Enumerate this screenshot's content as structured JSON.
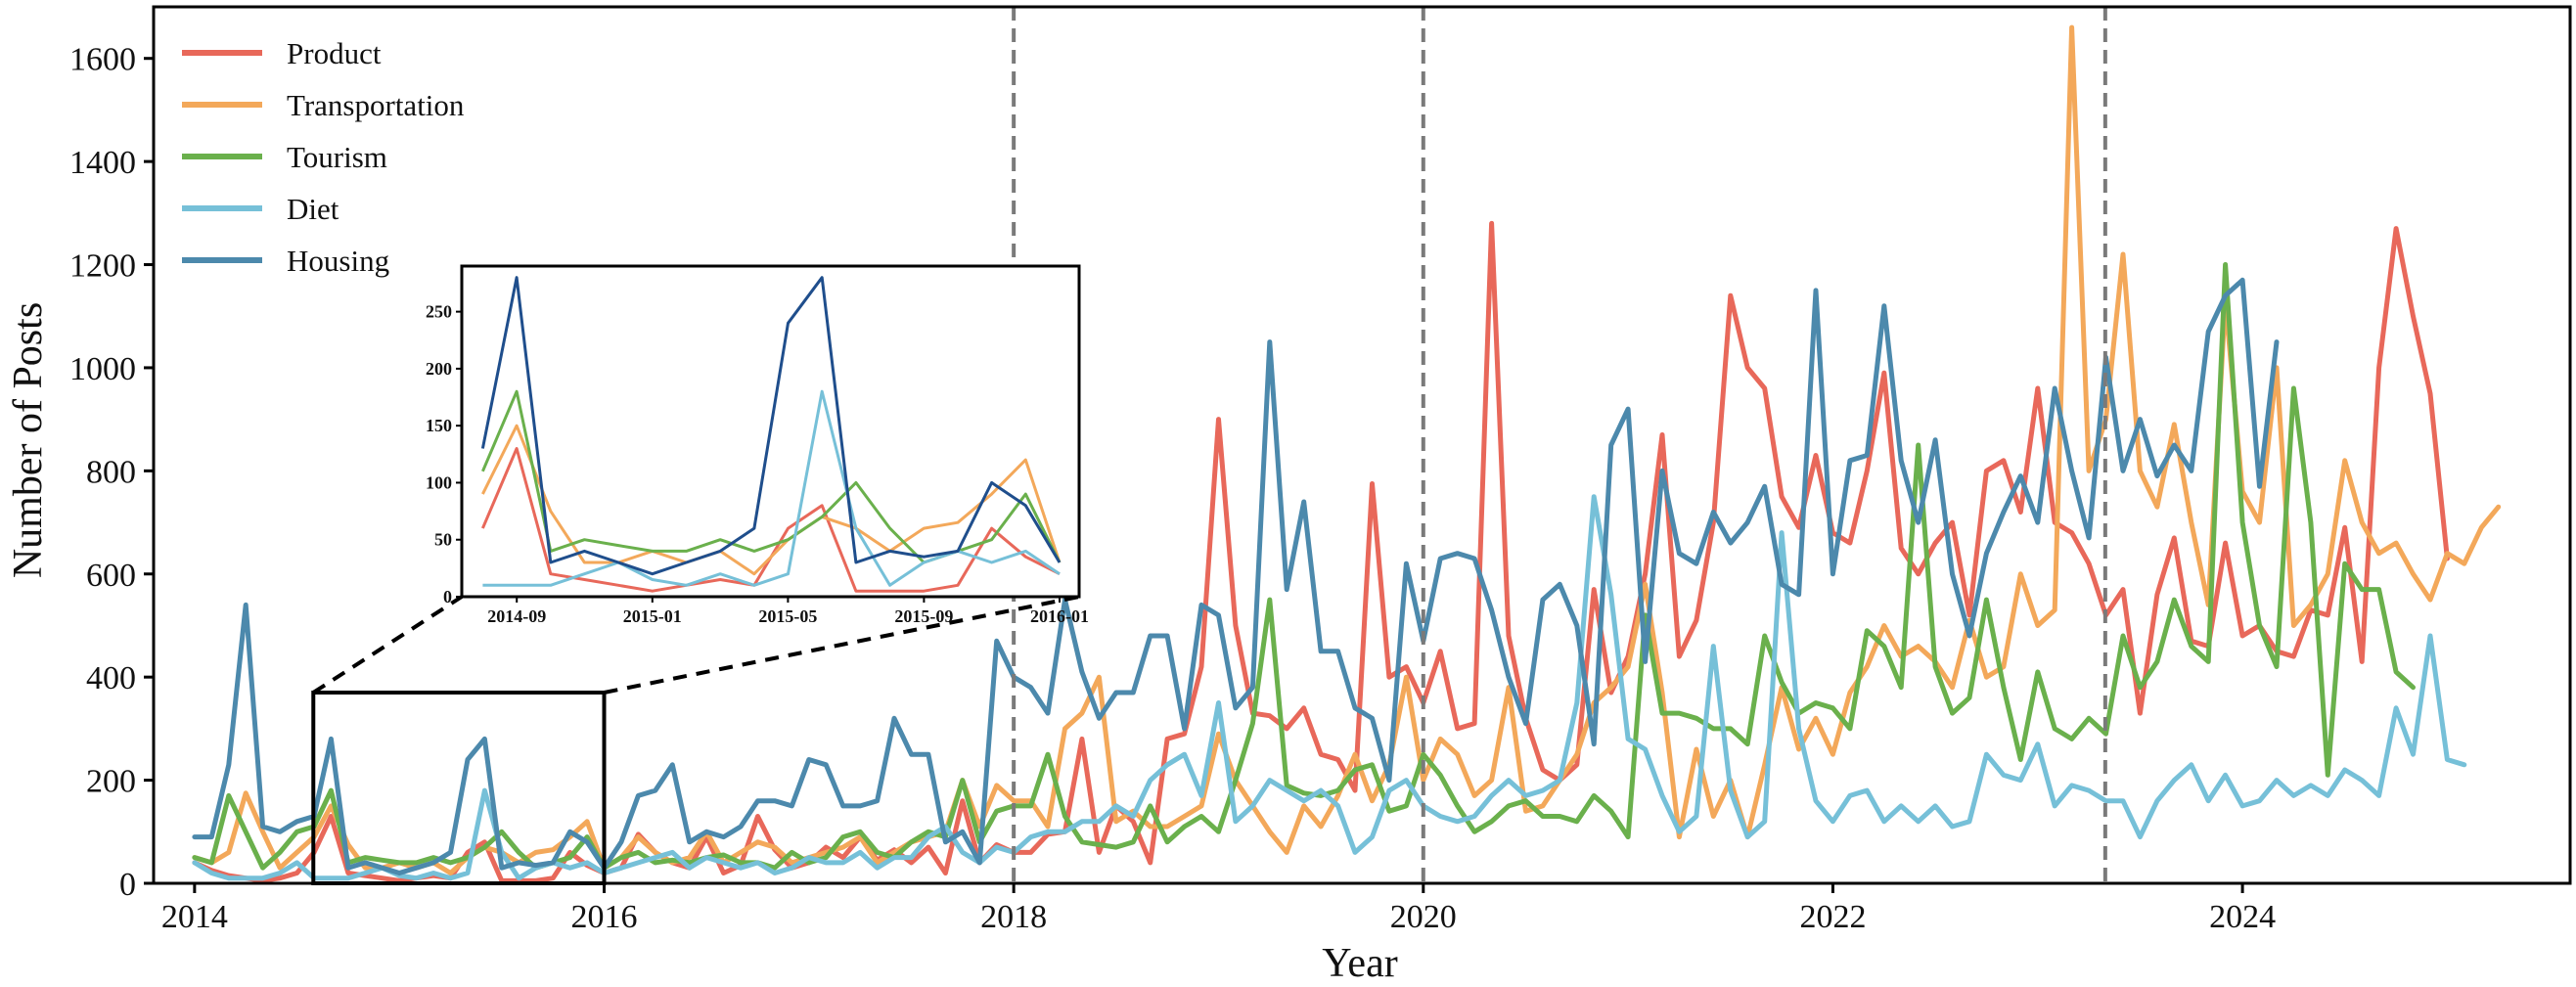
{
  "chart_data": {
    "type": "line",
    "title": "",
    "xlabel": "Year",
    "ylabel": "Number of Posts",
    "xlim": [
      2013.8,
      2025.6
    ],
    "ylim": [
      0,
      1700
    ],
    "xticks": [
      2014,
      2016,
      2018,
      2020,
      2022,
      2024
    ],
    "xtick_labels": [
      "2014",
      "2016",
      "2018",
      "2020",
      "2022",
      "2024"
    ],
    "yticks": [
      0,
      200,
      400,
      600,
      800,
      1000,
      1200,
      1400,
      1600
    ],
    "ytick_labels": [
      "0",
      "200",
      "400",
      "600",
      "800",
      "1000",
      "1200",
      "1400",
      "1600"
    ],
    "grid": false,
    "legend_position": "top-left",
    "vertical_dashed_lines": [
      2018.0,
      2020.0,
      2023.33
    ],
    "x_start": 2014.0,
    "x_step": 0.0833333,
    "series": [
      {
        "name": "Product",
        "color": "#e8685a",
        "values": [
          40,
          25,
          15,
          10,
          5,
          10,
          20,
          60,
          130,
          20,
          15,
          10,
          5,
          10,
          15,
          10,
          60,
          80,
          5,
          5,
          5,
          10,
          60,
          35,
          20,
          30,
          95,
          60,
          40,
          30,
          90,
          20,
          35,
          130,
          65,
          30,
          40,
          70,
          50,
          90,
          45,
          65,
          40,
          70,
          20,
          160,
          40,
          75,
          60,
          60,
          95,
          100,
          280,
          60,
          150,
          120,
          40,
          280,
          290,
          420,
          900,
          500,
          330,
          325,
          300,
          340,
          250,
          240,
          180,
          775,
          400,
          420,
          350,
          450,
          300,
          310,
          1280,
          480,
          320,
          220,
          200,
          230,
          570,
          370,
          440,
          600,
          870,
          440,
          510,
          700,
          1140,
          1000,
          960,
          750,
          690,
          830,
          680,
          660,
          800,
          990,
          650,
          600,
          660,
          700,
          520,
          800,
          820,
          720,
          960,
          700,
          680,
          620,
          520,
          570,
          330,
          560,
          670,
          470,
          460,
          660,
          480,
          500,
          450,
          440,
          530,
          520,
          690,
          430,
          1000,
          1270,
          1100,
          950,
          630
        ]
      },
      {
        "name": "Transportation",
        "color": "#f3a85a",
        "values": [
          50,
          40,
          60,
          175,
          100,
          30,
          60,
          90,
          150,
          75,
          30,
          30,
          40,
          30,
          40,
          20,
          50,
          70,
          60,
          40,
          60,
          65,
          90,
          120,
          30,
          50,
          90,
          60,
          40,
          50,
          100,
          40,
          60,
          80,
          70,
          40,
          50,
          60,
          70,
          90,
          40,
          60,
          80,
          90,
          100,
          200,
          110,
          190,
          160,
          160,
          110,
          300,
          330,
          400,
          120,
          140,
          110,
          110,
          130,
          150,
          290,
          200,
          150,
          100,
          60,
          150,
          110,
          170,
          250,
          160,
          230,
          400,
          200,
          280,
          250,
          170,
          200,
          380,
          140,
          150,
          200,
          250,
          350,
          380,
          420,
          580,
          370,
          90,
          260,
          130,
          200,
          90,
          230,
          380,
          260,
          320,
          250,
          370,
          420,
          500,
          440,
          460,
          430,
          380,
          510,
          400,
          420,
          600,
          500,
          530,
          1660,
          800,
          900,
          1220,
          800,
          730,
          890,
          700,
          540,
          1130,
          760,
          700,
          1000,
          500,
          540,
          600,
          820,
          700,
          640,
          660,
          600,
          550,
          640,
          620,
          690,
          730
        ]
      },
      {
        "name": "Tourism",
        "color": "#6ab04c",
        "values": [
          50,
          40,
          170,
          100,
          30,
          60,
          100,
          110,
          180,
          40,
          50,
          45,
          40,
          40,
          50,
          40,
          50,
          70,
          100,
          60,
          30,
          40,
          50,
          90,
          30,
          50,
          60,
          40,
          45,
          40,
          50,
          55,
          40,
          40,
          30,
          60,
          40,
          50,
          90,
          100,
          60,
          50,
          80,
          100,
          90,
          200,
          80,
          140,
          150,
          150,
          250,
          130,
          80,
          75,
          70,
          80,
          150,
          80,
          110,
          130,
          100,
          200,
          310,
          550,
          190,
          175,
          170,
          180,
          220,
          230,
          140,
          150,
          250,
          210,
          150,
          100,
          120,
          150,
          160,
          130,
          130,
          120,
          170,
          140,
          90,
          520,
          330,
          330,
          320,
          300,
          300,
          270,
          480,
          390,
          330,
          350,
          340,
          300,
          490,
          460,
          380,
          850,
          420,
          330,
          360,
          550,
          380,
          240,
          410,
          300,
          280,
          320,
          290,
          480,
          380,
          430,
          550,
          460,
          430,
          1200,
          700,
          500,
          420,
          960,
          700,
          210,
          620,
          570,
          570,
          410,
          380
        ]
      },
      {
        "name": "Diet",
        "color": "#76c0d8",
        "values": [
          40,
          20,
          10,
          10,
          10,
          20,
          40,
          10,
          10,
          10,
          20,
          30,
          15,
          10,
          20,
          10,
          20,
          180,
          60,
          10,
          30,
          40,
          30,
          40,
          20,
          30,
          40,
          50,
          60,
          30,
          50,
          40,
          30,
          40,
          20,
          30,
          50,
          40,
          40,
          60,
          30,
          50,
          50,
          90,
          110,
          60,
          40,
          70,
          60,
          90,
          100,
          100,
          120,
          120,
          150,
          130,
          200,
          230,
          250,
          170,
          350,
          120,
          150,
          200,
          180,
          160,
          180,
          150,
          60,
          90,
          180,
          200,
          150,
          130,
          120,
          130,
          170,
          200,
          170,
          180,
          200,
          350,
          750,
          560,
          280,
          260,
          170,
          100,
          130,
          460,
          180,
          90,
          120,
          680,
          300,
          160,
          120,
          170,
          180,
          120,
          150,
          120,
          150,
          110,
          120,
          250,
          210,
          200,
          270,
          150,
          190,
          180,
          160,
          160,
          90,
          160,
          200,
          230,
          160,
          210,
          150,
          160,
          200,
          170,
          190,
          170,
          220,
          200,
          170,
          340,
          250,
          480,
          240,
          230
        ]
      },
      {
        "name": "Housing",
        "color": "#4c89ac",
        "values": [
          90,
          90,
          230,
          540,
          110,
          100,
          120,
          130,
          280,
          30,
          40,
          30,
          20,
          30,
          40,
          60,
          240,
          280,
          30,
          40,
          35,
          40,
          100,
          80,
          30,
          80,
          170,
          180,
          230,
          80,
          100,
          90,
          110,
          160,
          160,
          150,
          240,
          230,
          150,
          150,
          160,
          320,
          250,
          250,
          80,
          100,
          40,
          470,
          400,
          380,
          330,
          550,
          410,
          320,
          370,
          370,
          480,
          480,
          300,
          540,
          520,
          340,
          380,
          1050,
          570,
          740,
          450,
          450,
          340,
          320,
          200,
          620,
          470,
          630,
          640,
          630,
          530,
          400,
          310,
          550,
          580,
          500,
          270,
          850,
          920,
          430,
          800,
          640,
          620,
          720,
          660,
          700,
          770,
          580,
          560,
          1150,
          600,
          820,
          830,
          1120,
          820,
          700,
          860,
          600,
          480,
          640,
          720,
          790,
          700,
          960,
          800,
          670,
          1020,
          800,
          900,
          790,
          850,
          800,
          1070,
          1140,
          1170,
          770,
          1050
        ]
      }
    ],
    "inset": {
      "xtick_labels": [
        "2014-09",
        "2015-01",
        "2015-05",
        "2015-09",
        "2016-01"
      ],
      "ytick_labels": [
        "0",
        "50",
        "100",
        "150",
        "200",
        "250"
      ],
      "ylim": [
        0,
        290
      ],
      "xlim": [
        2014.58,
        2016.0
      ],
      "zoom_region": {
        "x0": 2014.58,
        "x1": 2016.0,
        "y0": 0,
        "y1": 370
      }
    }
  }
}
